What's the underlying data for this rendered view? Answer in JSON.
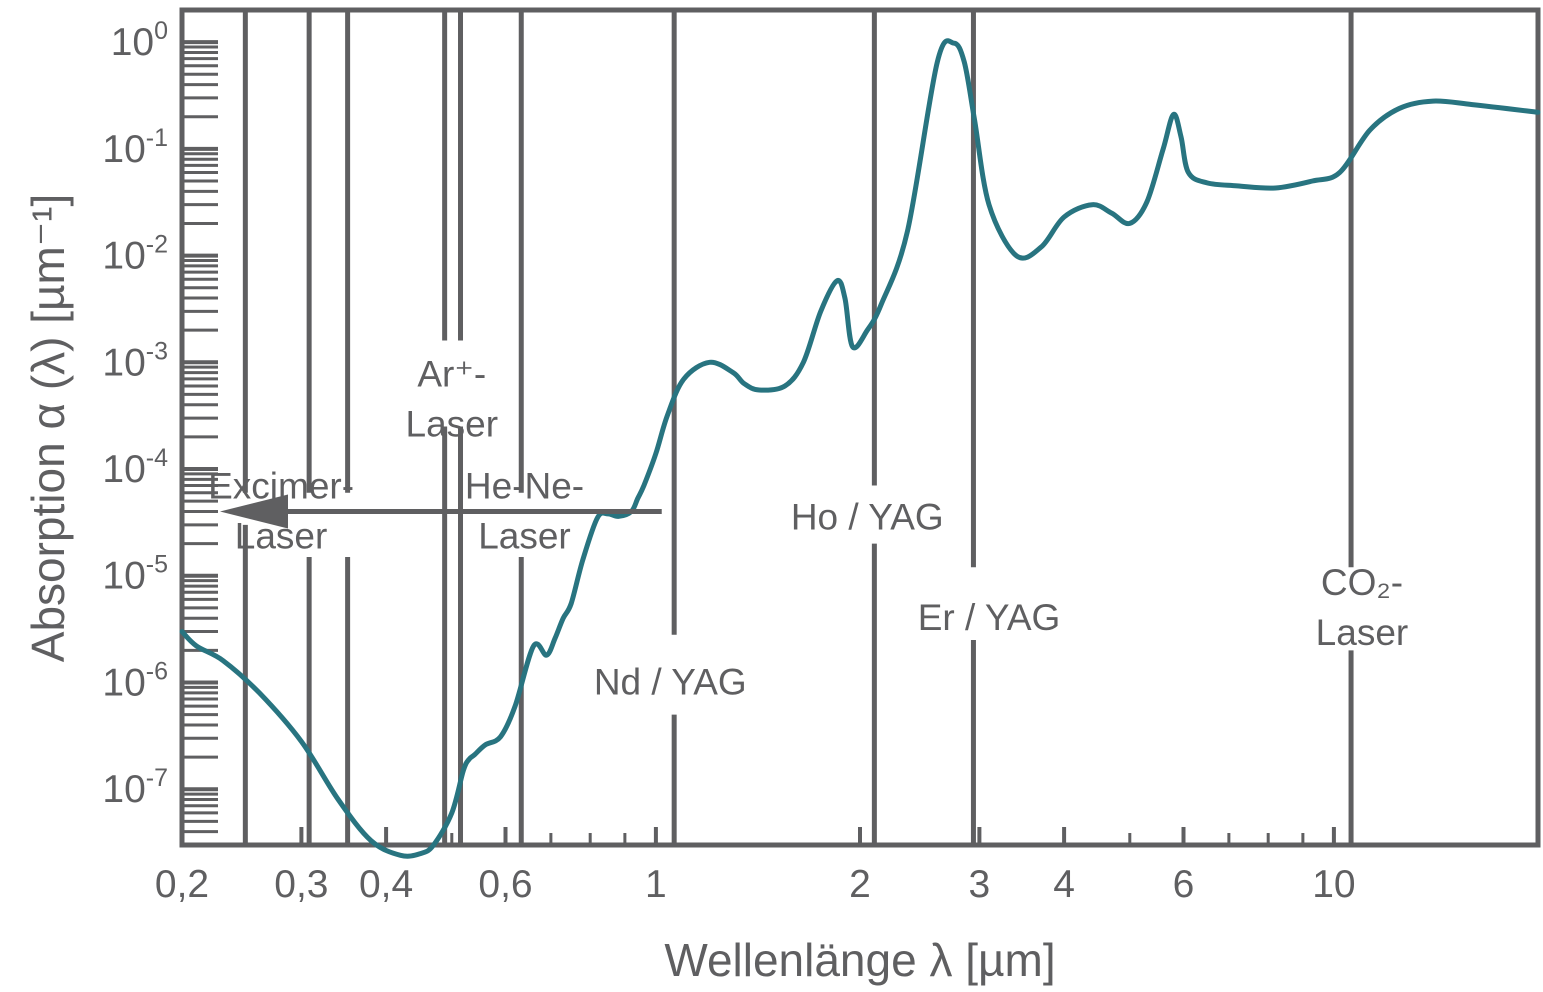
{
  "chart_data": {
    "type": "line",
    "x_scale": "log",
    "y_scale": "log",
    "xlabel": "Wellenlänge λ [µm]",
    "ylabel": "Absorption α (λ) [µm⁻¹]",
    "xlim": [
      0.2,
      20
    ],
    "ylim": [
      3e-08,
      2
    ],
    "grid": false,
    "x_ticks": [
      {
        "value": 0.2,
        "label": "0,2"
      },
      {
        "value": 0.3,
        "label": "0,3"
      },
      {
        "value": 0.4,
        "label": "0,4"
      },
      {
        "value": 0.6,
        "label": "0,6"
      },
      {
        "value": 1,
        "label": "1"
      },
      {
        "value": 2,
        "label": "2"
      },
      {
        "value": 3,
        "label": "3"
      },
      {
        "value": 4,
        "label": "4"
      },
      {
        "value": 6,
        "label": "6"
      },
      {
        "value": 10,
        "label": "10"
      }
    ],
    "y_ticks": [
      {
        "value": 1,
        "base": "10",
        "exp": "0"
      },
      {
        "value": 0.1,
        "base": "10",
        "exp": "-1"
      },
      {
        "value": 0.01,
        "base": "10",
        "exp": "-2"
      },
      {
        "value": 0.001,
        "base": "10",
        "exp": "-3"
      },
      {
        "value": 0.0001,
        "base": "10",
        "exp": "-4"
      },
      {
        "value": 1e-05,
        "base": "10",
        "exp": "-5"
      },
      {
        "value": 1e-06,
        "base": "10",
        "exp": "-6"
      },
      {
        "value": 1e-07,
        "base": "10",
        "exp": "-7"
      }
    ],
    "series": [
      {
        "color": "#287480",
        "x": [
          0.2,
          0.21,
          0.23,
          0.26,
          0.3,
          0.34,
          0.38,
          0.42,
          0.45,
          0.47,
          0.5,
          0.52,
          0.53,
          0.54,
          0.56,
          0.59,
          0.62,
          0.66,
          0.69,
          0.71,
          0.73,
          0.75,
          0.78,
          0.82,
          0.85,
          0.88,
          0.92,
          0.94,
          0.96,
          1.0,
          1.04,
          1.1,
          1.2,
          1.3,
          1.35,
          1.42,
          1.55,
          1.65,
          1.75,
          1.85,
          1.9,
          1.95,
          2.05,
          2.15,
          2.35,
          2.6,
          2.75,
          2.85,
          2.95,
          3.1,
          3.4,
          3.7,
          4.0,
          4.4,
          4.7,
          5.0,
          5.3,
          5.6,
          5.8,
          5.95,
          6.1,
          6.5,
          7.2,
          8.2,
          9.3,
          10.2,
          11.3,
          12.5,
          14.0,
          16.0,
          20.0
        ],
        "y": [
          3e-06,
          2.2e-06,
          1.6e-06,
          8e-07,
          2.8e-07,
          8e-08,
          3.3e-08,
          2.4e-08,
          2.5e-08,
          3e-08,
          6e-08,
          1.5e-07,
          1.9e-07,
          2.1e-07,
          2.6e-07,
          3.1e-07,
          6e-07,
          2.2e-06,
          1.8e-06,
          2.6e-06,
          4e-06,
          5.5e-06,
          1.4e-05,
          3.5e-05,
          3.8e-05,
          3.6e-05,
          4e-05,
          5.3e-05,
          7e-05,
          0.00014,
          0.00032,
          0.0007,
          0.001,
          0.0008,
          0.00063,
          0.00055,
          0.0006,
          0.001,
          0.003,
          0.0058,
          0.004,
          0.0014,
          0.002,
          0.0035,
          0.017,
          0.65,
          0.98,
          0.65,
          0.19,
          0.03,
          0.01,
          0.012,
          0.023,
          0.03,
          0.025,
          0.02,
          0.032,
          0.1,
          0.21,
          0.13,
          0.06,
          0.048,
          0.045,
          0.043,
          0.05,
          0.06,
          0.15,
          0.24,
          0.28,
          0.26,
          0.22
        ]
      }
    ],
    "arrow": {
      "from": [
        1.02,
        4e-05
      ],
      "to": [
        0.2,
        4e-05
      ]
    },
    "laser_lines": [
      {
        "name": "excimer-1",
        "x": 0.248,
        "gaps": [
          [
            3e-05,
            6e-05
          ]
        ]
      },
      {
        "name": "excimer-2",
        "x": 0.308,
        "gaps": [
          [
            1.5e-05,
            6e-05
          ]
        ]
      },
      {
        "name": "excimer-3",
        "x": 0.351,
        "gaps": [
          [
            1.5e-05,
            6e-05
          ]
        ]
      },
      {
        "name": "ar-1",
        "x": 0.488,
        "gaps": [
          [
            0.00025,
            0.0016
          ]
        ]
      },
      {
        "name": "ar-2",
        "x": 0.515,
        "gaps": [
          [
            0.00025,
            0.0016
          ]
        ]
      },
      {
        "name": "he-ne",
        "x": 0.633,
        "gaps": [
          [
            1.5e-05,
            6e-05
          ]
        ]
      },
      {
        "name": "nd-yag",
        "x": 1.064,
        "gaps": [
          [
            5e-07,
            2.8e-06
          ]
        ]
      },
      {
        "name": "ho-yag",
        "x": 2.1,
        "gaps": [
          [
            2e-05,
            7e-05
          ]
        ]
      },
      {
        "name": "er-yag",
        "x": 2.94,
        "gaps": [
          [
            2.5e-06,
            1.2e-05
          ]
        ]
      },
      {
        "name": "co2",
        "x": 10.6,
        "gaps": [
          [
            2e-06,
            1.2e-05
          ]
        ]
      }
    ],
    "annotations": [
      {
        "name": "excimer-laser",
        "x": 0.28,
        "y": 4e-05,
        "lines": [
          "Excimer-",
          "Laser"
        ]
      },
      {
        "name": "argon-laser",
        "x": 0.5,
        "y": 0.00045,
        "lines": [
          "Ar⁺-",
          "Laser"
        ]
      },
      {
        "name": "he-ne-laser",
        "x": 0.64,
        "y": 4e-05,
        "lines": [
          "He-Ne-",
          "Laser"
        ]
      },
      {
        "name": "nd-yag-laser",
        "x": 1.05,
        "y": 1e-06,
        "lines": [
          "Nd / YAG"
        ]
      },
      {
        "name": "ho-yag-laser",
        "x": 2.05,
        "y": 3.5e-05,
        "lines": [
          "Ho / YAG"
        ]
      },
      {
        "name": "er-yag-laser",
        "x": 3.1,
        "y": 4e-06,
        "lines": [
          "Er / YAG"
        ]
      },
      {
        "name": "co2-laser",
        "x": 11.0,
        "y": 5e-06,
        "lines": [
          "CO₂-",
          "Laser"
        ]
      }
    ]
  }
}
